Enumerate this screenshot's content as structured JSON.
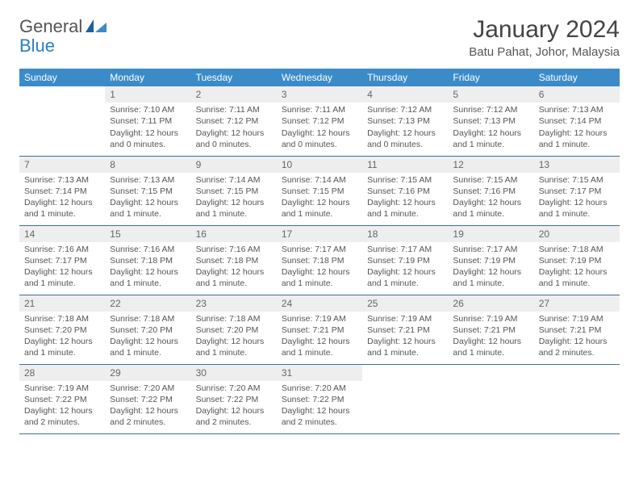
{
  "brand": {
    "part1": "General",
    "part2": "Blue"
  },
  "title": "January 2024",
  "location": "Batu Pahat, Johor, Malaysia",
  "colors": {
    "header_bg": "#3b8bc9",
    "header_text": "#ffffff",
    "daynum_bg": "#eeeeee",
    "row_border": "#3b6fa0",
    "body_text": "#555555",
    "logo_blue": "#2a7fbf"
  },
  "weekdays": [
    "Sunday",
    "Monday",
    "Tuesday",
    "Wednesday",
    "Thursday",
    "Friday",
    "Saturday"
  ],
  "first_weekday_index": 1,
  "days": [
    {
      "n": 1,
      "sunrise": "7:10 AM",
      "sunset": "7:11 PM",
      "daylight": "12 hours and 0 minutes."
    },
    {
      "n": 2,
      "sunrise": "7:11 AM",
      "sunset": "7:12 PM",
      "daylight": "12 hours and 0 minutes."
    },
    {
      "n": 3,
      "sunrise": "7:11 AM",
      "sunset": "7:12 PM",
      "daylight": "12 hours and 0 minutes."
    },
    {
      "n": 4,
      "sunrise": "7:12 AM",
      "sunset": "7:13 PM",
      "daylight": "12 hours and 0 minutes."
    },
    {
      "n": 5,
      "sunrise": "7:12 AM",
      "sunset": "7:13 PM",
      "daylight": "12 hours and 1 minute."
    },
    {
      "n": 6,
      "sunrise": "7:13 AM",
      "sunset": "7:14 PM",
      "daylight": "12 hours and 1 minute."
    },
    {
      "n": 7,
      "sunrise": "7:13 AM",
      "sunset": "7:14 PM",
      "daylight": "12 hours and 1 minute."
    },
    {
      "n": 8,
      "sunrise": "7:13 AM",
      "sunset": "7:15 PM",
      "daylight": "12 hours and 1 minute."
    },
    {
      "n": 9,
      "sunrise": "7:14 AM",
      "sunset": "7:15 PM",
      "daylight": "12 hours and 1 minute."
    },
    {
      "n": 10,
      "sunrise": "7:14 AM",
      "sunset": "7:15 PM",
      "daylight": "12 hours and 1 minute."
    },
    {
      "n": 11,
      "sunrise": "7:15 AM",
      "sunset": "7:16 PM",
      "daylight": "12 hours and 1 minute."
    },
    {
      "n": 12,
      "sunrise": "7:15 AM",
      "sunset": "7:16 PM",
      "daylight": "12 hours and 1 minute."
    },
    {
      "n": 13,
      "sunrise": "7:15 AM",
      "sunset": "7:17 PM",
      "daylight": "12 hours and 1 minute."
    },
    {
      "n": 14,
      "sunrise": "7:16 AM",
      "sunset": "7:17 PM",
      "daylight": "12 hours and 1 minute."
    },
    {
      "n": 15,
      "sunrise": "7:16 AM",
      "sunset": "7:18 PM",
      "daylight": "12 hours and 1 minute."
    },
    {
      "n": 16,
      "sunrise": "7:16 AM",
      "sunset": "7:18 PM",
      "daylight": "12 hours and 1 minute."
    },
    {
      "n": 17,
      "sunrise": "7:17 AM",
      "sunset": "7:18 PM",
      "daylight": "12 hours and 1 minute."
    },
    {
      "n": 18,
      "sunrise": "7:17 AM",
      "sunset": "7:19 PM",
      "daylight": "12 hours and 1 minute."
    },
    {
      "n": 19,
      "sunrise": "7:17 AM",
      "sunset": "7:19 PM",
      "daylight": "12 hours and 1 minute."
    },
    {
      "n": 20,
      "sunrise": "7:18 AM",
      "sunset": "7:19 PM",
      "daylight": "12 hours and 1 minute."
    },
    {
      "n": 21,
      "sunrise": "7:18 AM",
      "sunset": "7:20 PM",
      "daylight": "12 hours and 1 minute."
    },
    {
      "n": 22,
      "sunrise": "7:18 AM",
      "sunset": "7:20 PM",
      "daylight": "12 hours and 1 minute."
    },
    {
      "n": 23,
      "sunrise": "7:18 AM",
      "sunset": "7:20 PM",
      "daylight": "12 hours and 1 minute."
    },
    {
      "n": 24,
      "sunrise": "7:19 AM",
      "sunset": "7:21 PM",
      "daylight": "12 hours and 1 minute."
    },
    {
      "n": 25,
      "sunrise": "7:19 AM",
      "sunset": "7:21 PM",
      "daylight": "12 hours and 1 minute."
    },
    {
      "n": 26,
      "sunrise": "7:19 AM",
      "sunset": "7:21 PM",
      "daylight": "12 hours and 1 minute."
    },
    {
      "n": 27,
      "sunrise": "7:19 AM",
      "sunset": "7:21 PM",
      "daylight": "12 hours and 2 minutes."
    },
    {
      "n": 28,
      "sunrise": "7:19 AM",
      "sunset": "7:22 PM",
      "daylight": "12 hours and 2 minutes."
    },
    {
      "n": 29,
      "sunrise": "7:20 AM",
      "sunset": "7:22 PM",
      "daylight": "12 hours and 2 minutes."
    },
    {
      "n": 30,
      "sunrise": "7:20 AM",
      "sunset": "7:22 PM",
      "daylight": "12 hours and 2 minutes."
    },
    {
      "n": 31,
      "sunrise": "7:20 AM",
      "sunset": "7:22 PM",
      "daylight": "12 hours and 2 minutes."
    }
  ],
  "labels": {
    "sunrise": "Sunrise:",
    "sunset": "Sunset:",
    "daylight": "Daylight:"
  }
}
